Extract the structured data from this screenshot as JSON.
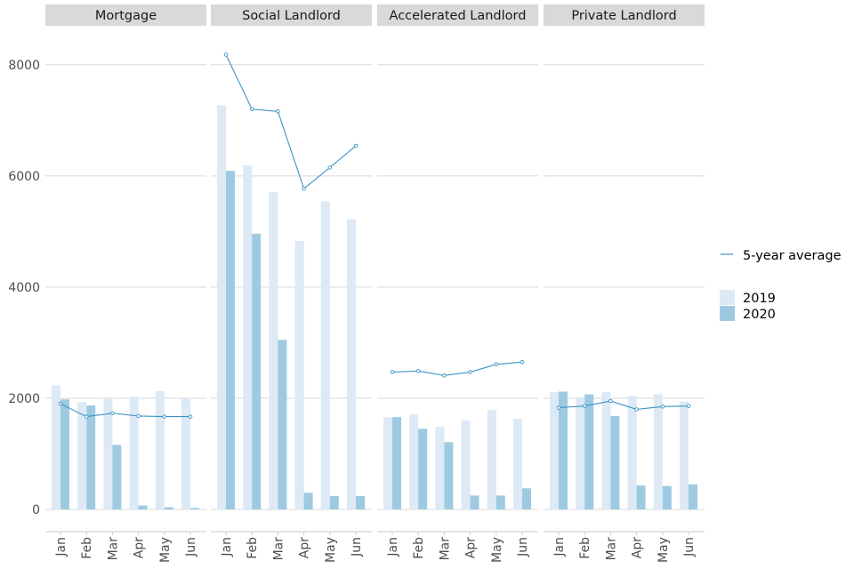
{
  "chart_data": {
    "type": "bar",
    "panels": [
      {
        "title": "Mortgage",
        "categories": [
          "Jan",
          "Feb",
          "Mar",
          "Apr",
          "May",
          "Jun"
        ],
        "series": [
          {
            "name": "2019",
            "values": [
              2230,
              1930,
              1990,
              2030,
              2130,
              2000
            ]
          },
          {
            "name": "2020",
            "values": [
              1980,
              1870,
              1160,
              70,
              40,
              25
            ]
          }
        ],
        "line": {
          "name": "5-year average",
          "values": [
            1900,
            1670,
            1730,
            1680,
            1670,
            1670
          ]
        }
      },
      {
        "title": "Social Landlord",
        "categories": [
          "Jan",
          "Feb",
          "Mar",
          "Apr",
          "May",
          "Jun"
        ],
        "series": [
          {
            "name": "2019",
            "values": [
              7270,
              6190,
              5710,
              4830,
              5540,
              5220
            ]
          },
          {
            "name": "2020",
            "values": [
              6090,
              4960,
              3050,
              300,
              240,
              240
            ]
          }
        ],
        "line": {
          "name": "5-year average",
          "values": [
            8180,
            7200,
            7160,
            5770,
            6150,
            6540
          ]
        }
      },
      {
        "title": "Accelerated Landlord",
        "categories": [
          "Jan",
          "Feb",
          "Mar",
          "Apr",
          "May",
          "Jun"
        ],
        "series": [
          {
            "name": "2019",
            "values": [
              1660,
              1710,
              1490,
              1600,
              1790,
              1630
            ]
          },
          {
            "name": "2020",
            "values": [
              1660,
              1450,
              1210,
              250,
              250,
              380
            ]
          }
        ],
        "line": {
          "name": "5-year average",
          "values": [
            2470,
            2490,
            2410,
            2470,
            2610,
            2650
          ]
        }
      },
      {
        "title": "Private Landlord",
        "categories": [
          "Jan",
          "Feb",
          "Mar",
          "Apr",
          "May",
          "Jun"
        ],
        "series": [
          {
            "name": "2019",
            "values": [
              2110,
              2020,
              2110,
              2040,
              2070,
              1940
            ]
          },
          {
            "name": "2020",
            "values": [
              2120,
              2070,
              1680,
              430,
              420,
              450
            ]
          }
        ],
        "line": {
          "name": "5-year average",
          "values": [
            1830,
            1860,
            1950,
            1800,
            1850,
            1860
          ]
        }
      }
    ],
    "yticks": [
      0,
      2000,
      4000,
      6000,
      8000
    ],
    "ylim": [
      -400,
      8700
    ],
    "grid": true,
    "legend": {
      "line_label": "5-year average",
      "bar_labels": [
        "2019",
        "2020"
      ],
      "position": "right"
    },
    "colors": {
      "bar_2019": "#dde9f5",
      "bar_2020": "#9ecae1",
      "line": "#3a93c3",
      "strip": "#d9d9d9"
    }
  }
}
